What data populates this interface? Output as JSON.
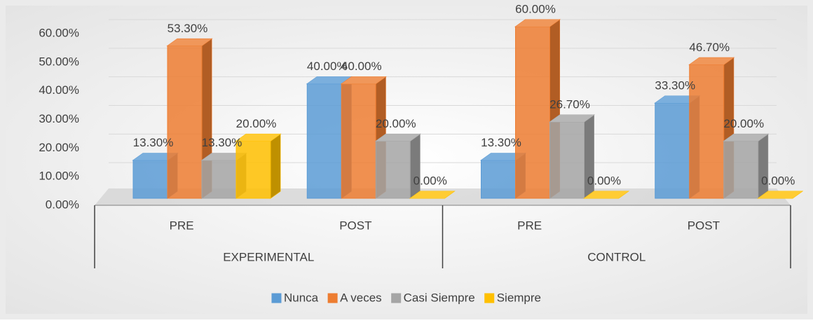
{
  "chart_data": {
    "type": "bar3d",
    "categories": [
      "PRE",
      "POST",
      "PRE",
      "POST"
    ],
    "groups": [
      "EXPERIMENTAL",
      "CONTROL"
    ],
    "series": [
      {
        "name": "Nunca",
        "color": "#5b9bd5",
        "values": [
          13.3,
          40,
          13.3,
          33.3
        ],
        "value_labels": [
          "13.30%",
          "40.00%",
          "13.30%",
          "33.30%"
        ]
      },
      {
        "name": "A veces",
        "color": "#ed7d31",
        "values": [
          53.3,
          40,
          60,
          46.7
        ],
        "value_labels": [
          "53.30%",
          "40.00%",
          "60.00%",
          "46.70%"
        ]
      },
      {
        "name": "Casi Siempre",
        "color": "#a5a5a5",
        "values": [
          13.3,
          20,
          26.7,
          20
        ],
        "value_labels": [
          "13.30%",
          "20.00%",
          "26.70%",
          "20.00%"
        ]
      },
      {
        "name": "Siempre",
        "color": "#ffc000",
        "values": [
          20,
          0,
          0,
          0
        ],
        "value_labels": [
          "20.00%",
          "0.00%",
          "0.00%",
          "0.00%"
        ]
      }
    ],
    "ylim": [
      0,
      60
    ],
    "yticks": [
      {
        "value": 0,
        "label": "0.00%"
      },
      {
        "value": 10,
        "label": "10.00%"
      },
      {
        "value": 20,
        "label": "20.00%"
      },
      {
        "value": 30,
        "label": "30.00%"
      },
      {
        "value": 40,
        "label": "40.00%"
      },
      {
        "value": 50,
        "label": "50.00%"
      },
      {
        "value": 60,
        "label": "60.00%"
      }
    ],
    "grid": true,
    "legend": "bottom"
  }
}
